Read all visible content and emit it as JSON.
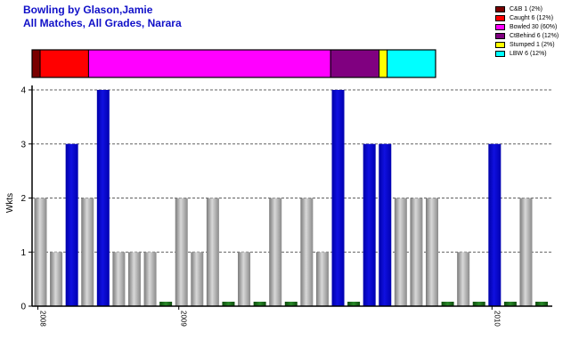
{
  "header": {
    "title": "Bowling by Glason,Jamie",
    "subtitle": "All Matches, All Grades, Narara"
  },
  "colors": {
    "default_bar": "#a0a0a0",
    "highlight_bar": "#0000cc",
    "zero_bar": "#1a6e1a"
  },
  "legend": [
    {
      "label": "C&B 1 (2%)",
      "color": "#7a0000"
    },
    {
      "label": "Caught 6 (12%)",
      "color": "#ff0000"
    },
    {
      "label": "Bowled 30 (60%)",
      "color": "#ff00ff"
    },
    {
      "label": "CtBehind 6 (12%)",
      "color": "#800080"
    },
    {
      "label": "Stumped 1 (2%)",
      "color": "#ffff00"
    },
    {
      "label": "LBW 6 (12%)",
      "color": "#00ffff"
    }
  ],
  "chart_data": {
    "type": "bar",
    "ylabel": "Wkts",
    "ylim": [
      0,
      4
    ],
    "yticks": [
      "0",
      "1",
      "2",
      "3",
      "4"
    ],
    "grid": true,
    "values": [
      2,
      1,
      3,
      2,
      4,
      1,
      1,
      1,
      0,
      2,
      1,
      2,
      0,
      1,
      0,
      2,
      0,
      2,
      1,
      4,
      0,
      3,
      3,
      2,
      2,
      2,
      0,
      1,
      0,
      3,
      0,
      2,
      0
    ],
    "x_tick_labels": [
      {
        "label": "2008",
        "at_index": 0
      },
      {
        "label": "2009",
        "at_index": 9
      },
      {
        "label": "2010",
        "at_index": 29
      }
    ],
    "dismissal_breakdown": [
      {
        "name": "C&B",
        "count": 1,
        "percent": 2
      },
      {
        "name": "Caught",
        "count": 6,
        "percent": 12
      },
      {
        "name": "Bowled",
        "count": 30,
        "percent": 60
      },
      {
        "name": "CtBehind",
        "count": 6,
        "percent": 12
      },
      {
        "name": "Stumped",
        "count": 1,
        "percent": 2
      },
      {
        "name": "LBW",
        "count": 6,
        "percent": 12
      }
    ]
  }
}
